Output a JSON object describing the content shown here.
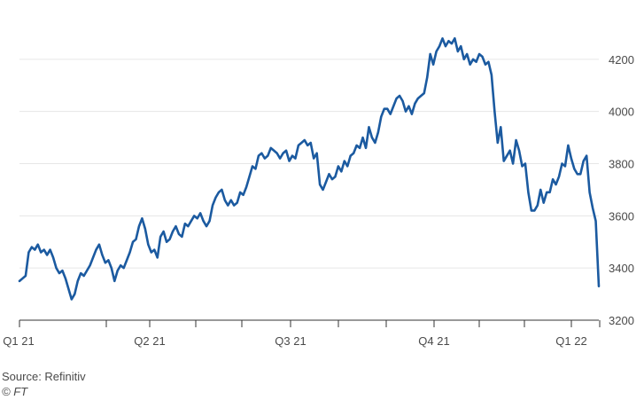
{
  "chart_data": {
    "type": "line",
    "title": "",
    "xlabel": "",
    "ylabel": "",
    "x_ticks": [
      "Q1 21",
      "Q2 21",
      "Q3 21",
      "Q4 21",
      "Q1 22"
    ],
    "y_ticks": [
      3200,
      3400,
      3600,
      3800,
      4000,
      4200
    ],
    "ylim": [
      3200,
      4300
    ],
    "grid": true,
    "legend": "none",
    "line_color": "#1b5aa0",
    "series": [
      {
        "values": [
          3350,
          3360,
          3370,
          3460,
          3480,
          3470,
          3490,
          3460,
          3470,
          3450,
          3470,
          3440,
          3400,
          3380,
          3390,
          3360,
          3320,
          3280,
          3300,
          3350,
          3380,
          3370,
          3390,
          3410,
          3440,
          3470,
          3490,
          3450,
          3420,
          3430,
          3400,
          3350,
          3390,
          3410,
          3400,
          3430,
          3460,
          3500,
          3510,
          3560,
          3590,
          3550,
          3490,
          3460,
          3470,
          3440,
          3520,
          3540,
          3500,
          3510,
          3540,
          3560,
          3530,
          3520,
          3570,
          3560,
          3580,
          3600,
          3590,
          3610,
          3580,
          3560,
          3580,
          3640,
          3670,
          3690,
          3700,
          3660,
          3640,
          3660,
          3640,
          3650,
          3690,
          3680,
          3710,
          3750,
          3790,
          3780,
          3830,
          3840,
          3820,
          3830,
          3860,
          3850,
          3840,
          3820,
          3840,
          3850,
          3810,
          3830,
          3820,
          3870,
          3880,
          3890,
          3870,
          3880,
          3820,
          3840,
          3720,
          3700,
          3730,
          3760,
          3740,
          3750,
          3790,
          3770,
          3810,
          3790,
          3830,
          3840,
          3870,
          3860,
          3900,
          3860,
          3940,
          3900,
          3880,
          3920,
          3980,
          4010,
          4010,
          3990,
          4020,
          4050,
          4060,
          4040,
          4000,
          4020,
          3990,
          4030,
          4050,
          4060,
          4070,
          4130,
          4220,
          4180,
          4230,
          4250,
          4280,
          4250,
          4270,
          4260,
          4280,
          4230,
          4250,
          4200,
          4220,
          4180,
          4200,
          4190,
          4220,
          4210,
          4180,
          4190,
          4140,
          4000,
          3880,
          3940,
          3810,
          3830,
          3850,
          3800,
          3890,
          3850,
          3790,
          3800,
          3690,
          3620,
          3620,
          3640,
          3700,
          3650,
          3690,
          3690,
          3740,
          3720,
          3750,
          3800,
          3790,
          3870,
          3820,
          3780,
          3760,
          3760,
          3810,
          3830,
          3690,
          3630,
          3580,
          3330
        ]
      }
    ]
  },
  "footer": {
    "source": "Source: Refinitiv",
    "credit": "© FT"
  }
}
